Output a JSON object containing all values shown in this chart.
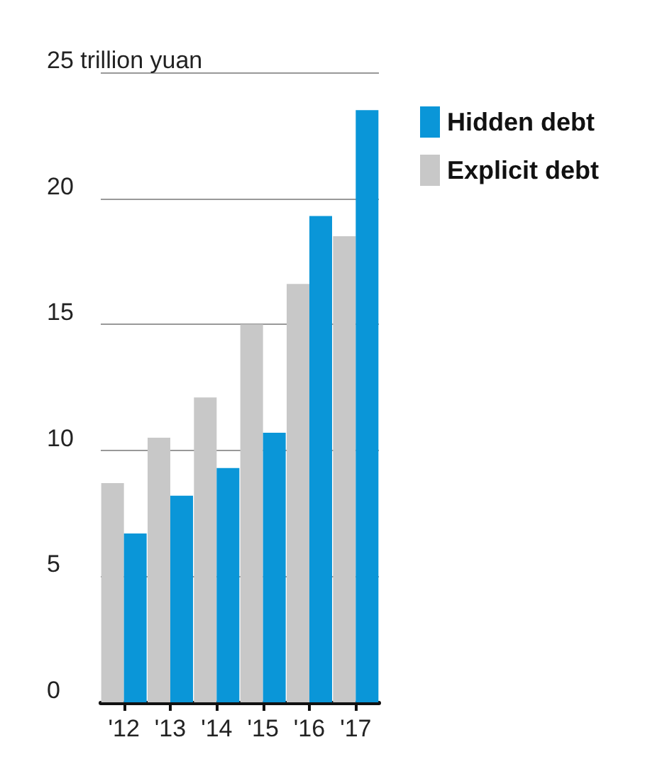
{
  "chart_data": {
    "type": "bar",
    "categories": [
      "'12",
      "'13",
      "'14",
      "'15",
      "'16",
      "'17"
    ],
    "series": [
      {
        "name": "Explicit debt",
        "color": "#c8c8c8",
        "values": [
          8.7,
          10.5,
          12.1,
          15.0,
          16.6,
          18.5
        ]
      },
      {
        "name": "Hidden debt",
        "color": "#0a96d8",
        "values": [
          6.7,
          8.2,
          9.3,
          10.7,
          19.3,
          23.5
        ]
      }
    ],
    "ylim": [
      0,
      25
    ],
    "yticks": [
      0,
      5,
      10,
      15,
      20,
      {
        "value": 25,
        "label": "25 trillion yuan"
      }
    ],
    "grid": "y",
    "legend": "top right"
  }
}
